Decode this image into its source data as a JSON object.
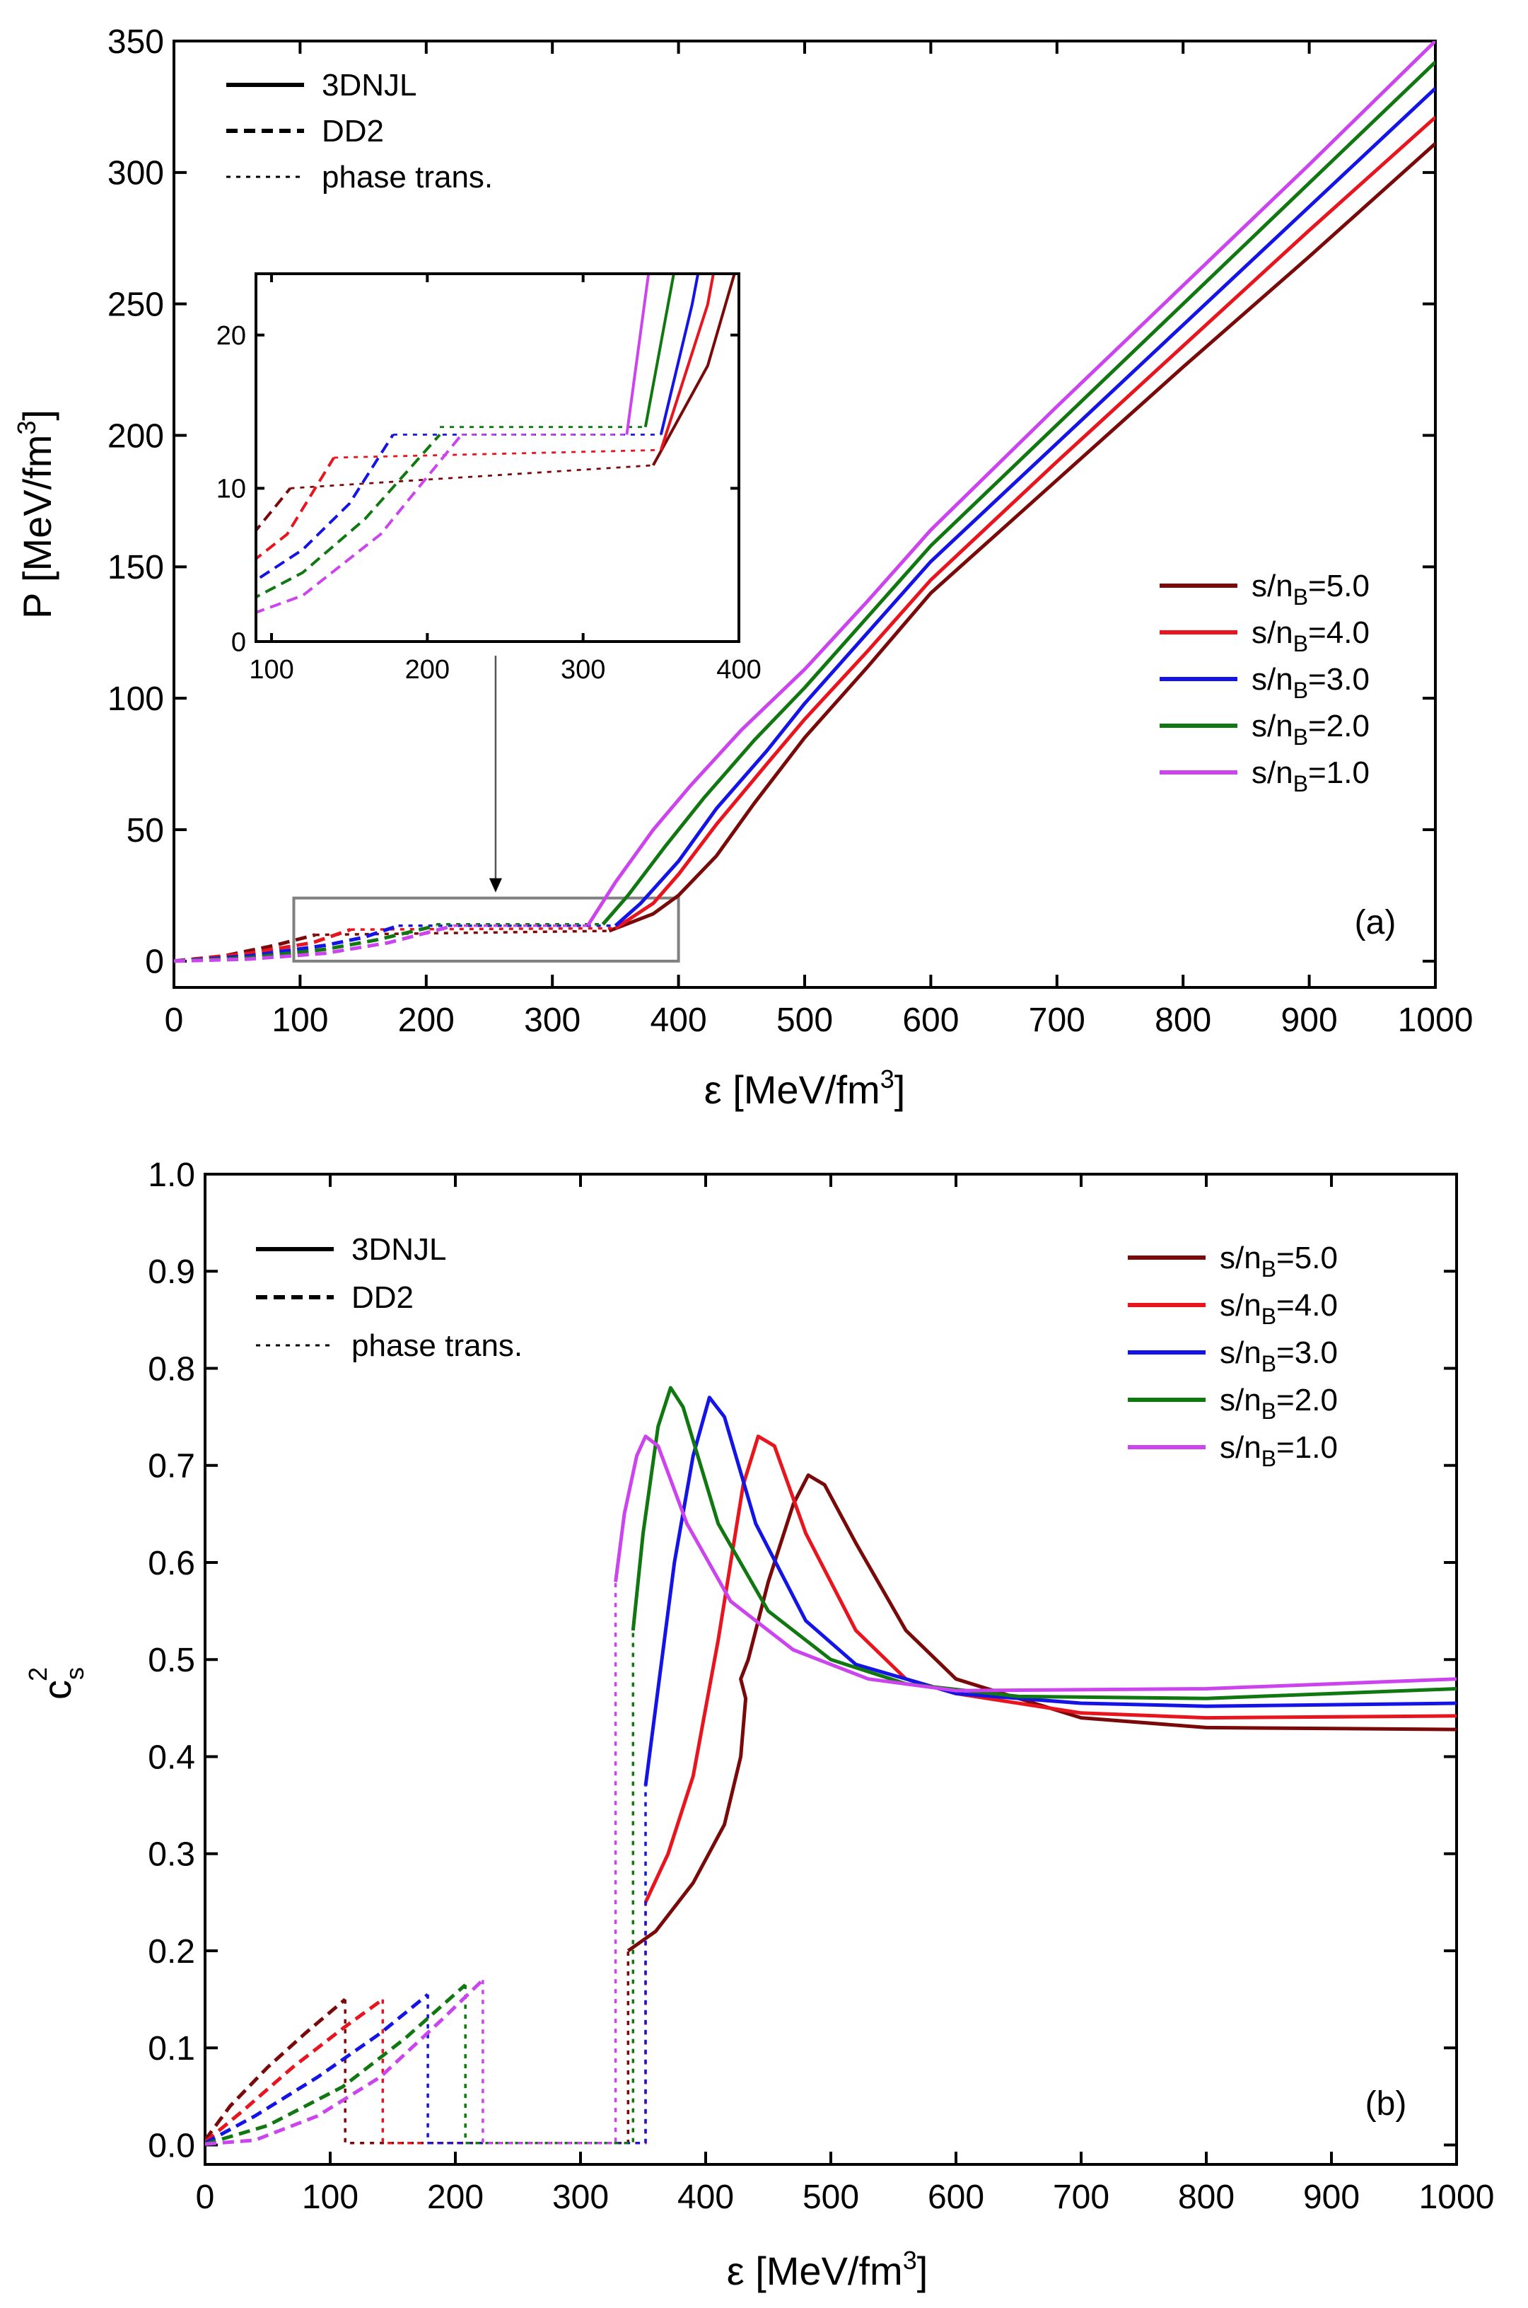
{
  "chart_data": [
    {
      "type": "line",
      "panel_label": "(a)",
      "xlabel_main": "ε [MeV/fm",
      "xlabel_sup": "3",
      "xlabel_end": "]",
      "ylabel_main": "P [MeV/fm",
      "ylabel_sup": "3",
      "ylabel_end": "]",
      "xlim": [
        0,
        1000
      ],
      "ylim": [
        -10,
        350
      ],
      "xticks": [
        0,
        100,
        200,
        300,
        400,
        500,
        600,
        700,
        800,
        900,
        1000
      ],
      "xtick_labels": [
        "0",
        "100",
        "200",
        "300",
        "400",
        "500",
        "600",
        "700",
        "800",
        "900",
        "1000"
      ],
      "yticks": [
        0,
        50,
        100,
        150,
        200,
        250,
        300,
        350
      ],
      "ytick_labels": [
        "0",
        "50",
        "100",
        "150",
        "200",
        "250",
        "300",
        "350"
      ],
      "style_legend": [
        {
          "label": "3DNJL",
          "style": "solid"
        },
        {
          "label": "DD2",
          "style": "dashed"
        },
        {
          "label": "phase trans.",
          "style": "dotted"
        }
      ],
      "series_legend_prefix": "s/n",
      "series_legend_sub": "B",
      "series": [
        {
          "name": "s/nB=5.0",
          "value_label": "=5.0",
          "color": "#7a0a0a",
          "dd2": [
            [
              0,
              0
            ],
            [
              40,
              2
            ],
            [
              80,
              6
            ],
            [
              112,
              10
            ]
          ],
          "transition": [
            [
              112,
              10
            ],
            [
              345,
              11.5
            ]
          ],
          "njl": [
            [
              345,
              11.5
            ],
            [
              380,
              18
            ],
            [
              400,
              25
            ],
            [
              430,
              40
            ],
            [
              460,
              60
            ],
            [
              500,
              85
            ],
            [
              550,
              112
            ],
            [
              600,
              140
            ],
            [
              700,
              183
            ],
            [
              800,
              226
            ],
            [
              900,
              268
            ],
            [
              1000,
              311
            ]
          ]
        },
        {
          "name": "s/nB=4.0",
          "value_label": "=4.0",
          "color": "#e8141e",
          "dd2": [
            [
              0,
              0
            ],
            [
              60,
              3
            ],
            [
              110,
              7
            ],
            [
              140,
              12
            ]
          ],
          "transition": [
            [
              140,
              12
            ],
            [
              350,
              12.5
            ]
          ],
          "njl": [
            [
              350,
              12.5
            ],
            [
              380,
              22
            ],
            [
              400,
              33
            ],
            [
              430,
              52
            ],
            [
              470,
              75
            ],
            [
              500,
              92
            ],
            [
              550,
              118
            ],
            [
              600,
              145
            ],
            [
              700,
              190
            ],
            [
              800,
              234
            ],
            [
              900,
              278
            ],
            [
              1000,
              321
            ]
          ]
        },
        {
          "name": "s/nB=3.0",
          "value_label": "=3.0",
          "color": "#1414e6",
          "dd2": [
            [
              0,
              0
            ],
            [
              60,
              2
            ],
            [
              120,
              6
            ],
            [
              150,
              9
            ],
            [
              178,
              13.5
            ]
          ],
          "transition": [
            [
              178,
              13.5
            ],
            [
              350,
              13.5
            ]
          ],
          "njl": [
            [
              350,
              13.5
            ],
            [
              370,
              22
            ],
            [
              400,
              38
            ],
            [
              430,
              58
            ],
            [
              470,
              80
            ],
            [
              500,
              98
            ],
            [
              550,
              125
            ],
            [
              600,
              152
            ],
            [
              700,
              197
            ],
            [
              800,
              242
            ],
            [
              900,
              287
            ],
            [
              1000,
              332
            ]
          ]
        },
        {
          "name": "s/nB=2.0",
          "value_label": "=2.0",
          "color": "#117711",
          "dd2": [
            [
              0,
              0
            ],
            [
              60,
              1.3
            ],
            [
              120,
              4.5
            ],
            [
              160,
              8
            ],
            [
              208,
              13.5
            ]
          ],
          "transition": [
            [
              208,
              14
            ],
            [
              340,
              14
            ]
          ],
          "njl": [
            [
              340,
              14
            ],
            [
              360,
              25
            ],
            [
              390,
              44
            ],
            [
              420,
              62
            ],
            [
              460,
              84
            ],
            [
              500,
              104
            ],
            [
              550,
              131
            ],
            [
              600,
              158
            ],
            [
              700,
              204
            ],
            [
              800,
              250
            ],
            [
              900,
              296
            ],
            [
              1000,
              342
            ]
          ]
        },
        {
          "name": "s/nB=1.0",
          "value_label": "=1.0",
          "color": "#cc44ee",
          "dd2": [
            [
              0,
              0
            ],
            [
              60,
              0.8
            ],
            [
              120,
              3
            ],
            [
              170,
              7
            ],
            [
              222,
              13.5
            ]
          ],
          "transition": [
            [
              222,
              13.5
            ],
            [
              328,
              13.5
            ]
          ],
          "njl": [
            [
              328,
              13.5
            ],
            [
              350,
              30
            ],
            [
              380,
              50
            ],
            [
              410,
              67
            ],
            [
              450,
              88
            ],
            [
              500,
              111
            ],
            [
              550,
              137
            ],
            [
              600,
              164
            ],
            [
              700,
              211
            ],
            [
              800,
              257
            ],
            [
              900,
              303
            ],
            [
              1000,
              350
            ]
          ]
        }
      ],
      "inset": {
        "xlim": [
          90,
          400
        ],
        "ylim": [
          0,
          24
        ],
        "xticks": [
          100,
          200,
          300,
          400
        ],
        "xtick_labels": [
          "100",
          "200",
          "300",
          "400"
        ],
        "yticks": [
          0,
          10,
          20
        ],
        "ytick_labels": [
          "0",
          "10",
          "20"
        ],
        "zoom_box_x": [
          95,
          400
        ],
        "zoom_box_y": [
          0,
          24
        ],
        "arrow_target_x": 255
      }
    },
    {
      "type": "line",
      "panel_label": "(b)",
      "xlabel_main": "ε [MeV/fm",
      "xlabel_sup": "3",
      "xlabel_end": "]",
      "ylabel_main": "c",
      "ylabel_sub": "s",
      "ylabel_sup": "2",
      "xlim": [
        0,
        1000
      ],
      "ylim": [
        -0.02,
        1.0
      ],
      "xticks": [
        0,
        100,
        200,
        300,
        400,
        500,
        600,
        700,
        800,
        900,
        1000
      ],
      "xtick_labels": [
        "0",
        "100",
        "200",
        "300",
        "400",
        "500",
        "600",
        "700",
        "800",
        "900",
        "1000"
      ],
      "yticks": [
        0.0,
        0.1,
        0.2,
        0.3,
        0.4,
        0.5,
        0.6,
        0.7,
        0.8,
        0.9,
        1.0
      ],
      "ytick_labels": [
        "0.0",
        "0.1",
        "0.2",
        "0.3",
        "0.4",
        "0.5",
        "0.6",
        "0.7",
        "0.8",
        "0.9",
        "1.0"
      ],
      "style_legend": [
        {
          "label": "3DNJL",
          "style": "solid"
        },
        {
          "label": "DD2",
          "style": "dashed"
        },
        {
          "label": "phase trans.",
          "style": "dotted"
        }
      ],
      "series_legend_prefix": "s/n",
      "series_legend_sub": "B",
      "series": [
        {
          "name": "s/nB=5.0",
          "value_label": "=5.0",
          "color": "#7a0a0a",
          "dd2": [
            [
              0,
              0.005
            ],
            [
              20,
              0.04
            ],
            [
              50,
              0.08
            ],
            [
              80,
              0.115
            ],
            [
              112,
              0.15
            ]
          ],
          "transition": [
            [
              112,
              0.15
            ],
            [
              112,
              0.002
            ],
            [
              338,
              0.002
            ],
            [
              338,
              0.2
            ]
          ],
          "njl": [
            [
              338,
              0.2
            ],
            [
              360,
              0.22
            ],
            [
              390,
              0.27
            ],
            [
              415,
              0.33
            ],
            [
              428,
              0.4
            ],
            [
              432,
              0.46
            ],
            [
              428,
              0.48
            ],
            [
              434,
              0.5
            ],
            [
              450,
              0.58
            ],
            [
              470,
              0.66
            ],
            [
              482,
              0.69
            ],
            [
              495,
              0.68
            ],
            [
              520,
              0.62
            ],
            [
              560,
              0.53
            ],
            [
              600,
              0.48
            ],
            [
              700,
              0.44
            ],
            [
              800,
              0.43
            ],
            [
              1000,
              0.428
            ]
          ]
        },
        {
          "name": "s/nB=4.0",
          "value_label": "=4.0",
          "color": "#e8141e",
          "dd2": [
            [
              0,
              0.003
            ],
            [
              30,
              0.035
            ],
            [
              70,
              0.08
            ],
            [
              110,
              0.12
            ],
            [
              142,
              0.15
            ]
          ],
          "transition": [
            [
              142,
              0.15
            ],
            [
              142,
              0.002
            ],
            [
              352,
              0.002
            ],
            [
              352,
              0.25
            ]
          ],
          "njl": [
            [
              352,
              0.25
            ],
            [
              370,
              0.3
            ],
            [
              390,
              0.38
            ],
            [
              410,
              0.52
            ],
            [
              430,
              0.68
            ],
            [
              442,
              0.73
            ],
            [
              455,
              0.72
            ],
            [
              480,
              0.63
            ],
            [
              520,
              0.53
            ],
            [
              560,
              0.48
            ],
            [
              600,
              0.465
            ],
            [
              700,
              0.445
            ],
            [
              800,
              0.44
            ],
            [
              1000,
              0.442
            ]
          ]
        },
        {
          "name": "s/nB=3.0",
          "value_label": "=3.0",
          "color": "#1414e6",
          "dd2": [
            [
              0,
              0.002
            ],
            [
              40,
              0.03
            ],
            [
              90,
              0.07
            ],
            [
              140,
              0.115
            ],
            [
              178,
              0.155
            ]
          ],
          "transition": [
            [
              178,
              0.155
            ],
            [
              178,
              0.002
            ],
            [
              352,
              0.002
            ],
            [
              352,
              0.37
            ]
          ],
          "njl": [
            [
              352,
              0.37
            ],
            [
              362,
              0.47
            ],
            [
              375,
              0.6
            ],
            [
              390,
              0.71
            ],
            [
              403,
              0.77
            ],
            [
              415,
              0.75
            ],
            [
              440,
              0.64
            ],
            [
              480,
              0.54
            ],
            [
              520,
              0.495
            ],
            [
              600,
              0.465
            ],
            [
              700,
              0.455
            ],
            [
              800,
              0.452
            ],
            [
              1000,
              0.455
            ]
          ]
        },
        {
          "name": "s/nB=2.0",
          "value_label": "=2.0",
          "color": "#117711",
          "dd2": [
            [
              0,
              0.001
            ],
            [
              50,
              0.02
            ],
            [
              110,
              0.06
            ],
            [
              160,
              0.11
            ],
            [
              208,
              0.165
            ]
          ],
          "transition": [
            [
              208,
              0.165
            ],
            [
              208,
              0.002
            ],
            [
              342,
              0.002
            ],
            [
              342,
              0.53
            ]
          ],
          "njl": [
            [
              342,
              0.53
            ],
            [
              350,
              0.63
            ],
            [
              362,
              0.74
            ],
            [
              372,
              0.78
            ],
            [
              382,
              0.76
            ],
            [
              410,
              0.64
            ],
            [
              450,
              0.55
            ],
            [
              500,
              0.5
            ],
            [
              560,
              0.475
            ],
            [
              650,
              0.462
            ],
            [
              800,
              0.46
            ],
            [
              1000,
              0.47
            ]
          ]
        },
        {
          "name": "s/nB=1.0",
          "value_label": "=1.0",
          "color": "#cc44ee",
          "dd2": [
            [
              0,
              0.001
            ],
            [
              40,
              0.005
            ],
            [
              90,
              0.03
            ],
            [
              140,
              0.07
            ],
            [
              190,
              0.13
            ],
            [
              222,
              0.17
            ]
          ],
          "transition": [
            [
              222,
              0.17
            ],
            [
              222,
              0.002
            ],
            [
              328,
              0.002
            ],
            [
              328,
              0.58
            ]
          ],
          "njl": [
            [
              328,
              0.58
            ],
            [
              335,
              0.65
            ],
            [
              345,
              0.71
            ],
            [
              352,
              0.73
            ],
            [
              362,
              0.72
            ],
            [
              385,
              0.64
            ],
            [
              420,
              0.56
            ],
            [
              470,
              0.51
            ],
            [
              530,
              0.48
            ],
            [
              600,
              0.468
            ],
            [
              800,
              0.47
            ],
            [
              1000,
              0.48
            ]
          ]
        }
      ]
    }
  ]
}
